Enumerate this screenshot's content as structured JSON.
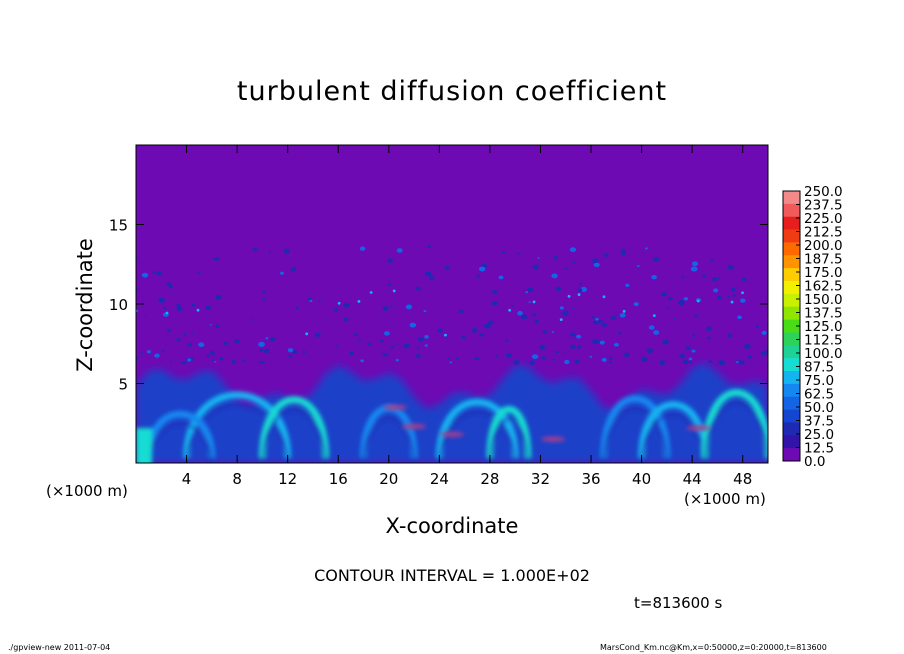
{
  "chart_data": {
    "type": "heatmap",
    "title": "turbulent diffusion coefficient",
    "xlabel": "X-coordinate",
    "ylabel": "Z-coordinate",
    "x_unit_left": "(×1000 m)",
    "x_unit_right": "(×1000 m)",
    "xlim": [
      0,
      50
    ],
    "ylim": [
      0,
      20
    ],
    "x_ticks": [
      "4",
      "8",
      "12",
      "16",
      "20",
      "24",
      "28",
      "32",
      "36",
      "40",
      "44",
      "48"
    ],
    "y_ticks": [
      "5",
      "10",
      "15"
    ],
    "colorbar": {
      "levels": [
        "250.0",
        "237.5",
        "225.0",
        "212.5",
        "200.0",
        "187.5",
        "175.0",
        "162.5",
        "150.0",
        "137.5",
        "125.0",
        "112.5",
        "100.0",
        "87.5",
        "75.0",
        "62.5",
        "50.0",
        "37.5",
        "25.0",
        "12.5",
        "0.0"
      ],
      "colors": [
        "#f28a8a",
        "#f05a5a",
        "#e81e1e",
        "#f03c14",
        "#ff6a00",
        "#ff9400",
        "#ffcc00",
        "#f0f000",
        "#c8f000",
        "#8ee600",
        "#4adc14",
        "#2ed25a",
        "#1ed296",
        "#16dcd2",
        "#14b4f0",
        "#1488f0",
        "#1464e6",
        "#1446d2",
        "#1e2ab4",
        "#3214aa",
        "#6e0ab4"
      ]
    },
    "background_color": "#6e0ab4",
    "contour_interval": "CONTOUR INTERVAL = 1.000E+02",
    "time": "t=813600 s"
  },
  "footer": {
    "left": "./gpview-new  2011-07-04",
    "right": "MarsCond_Km.nc@Km,x=0:50000,z=0:20000,t=813600"
  }
}
